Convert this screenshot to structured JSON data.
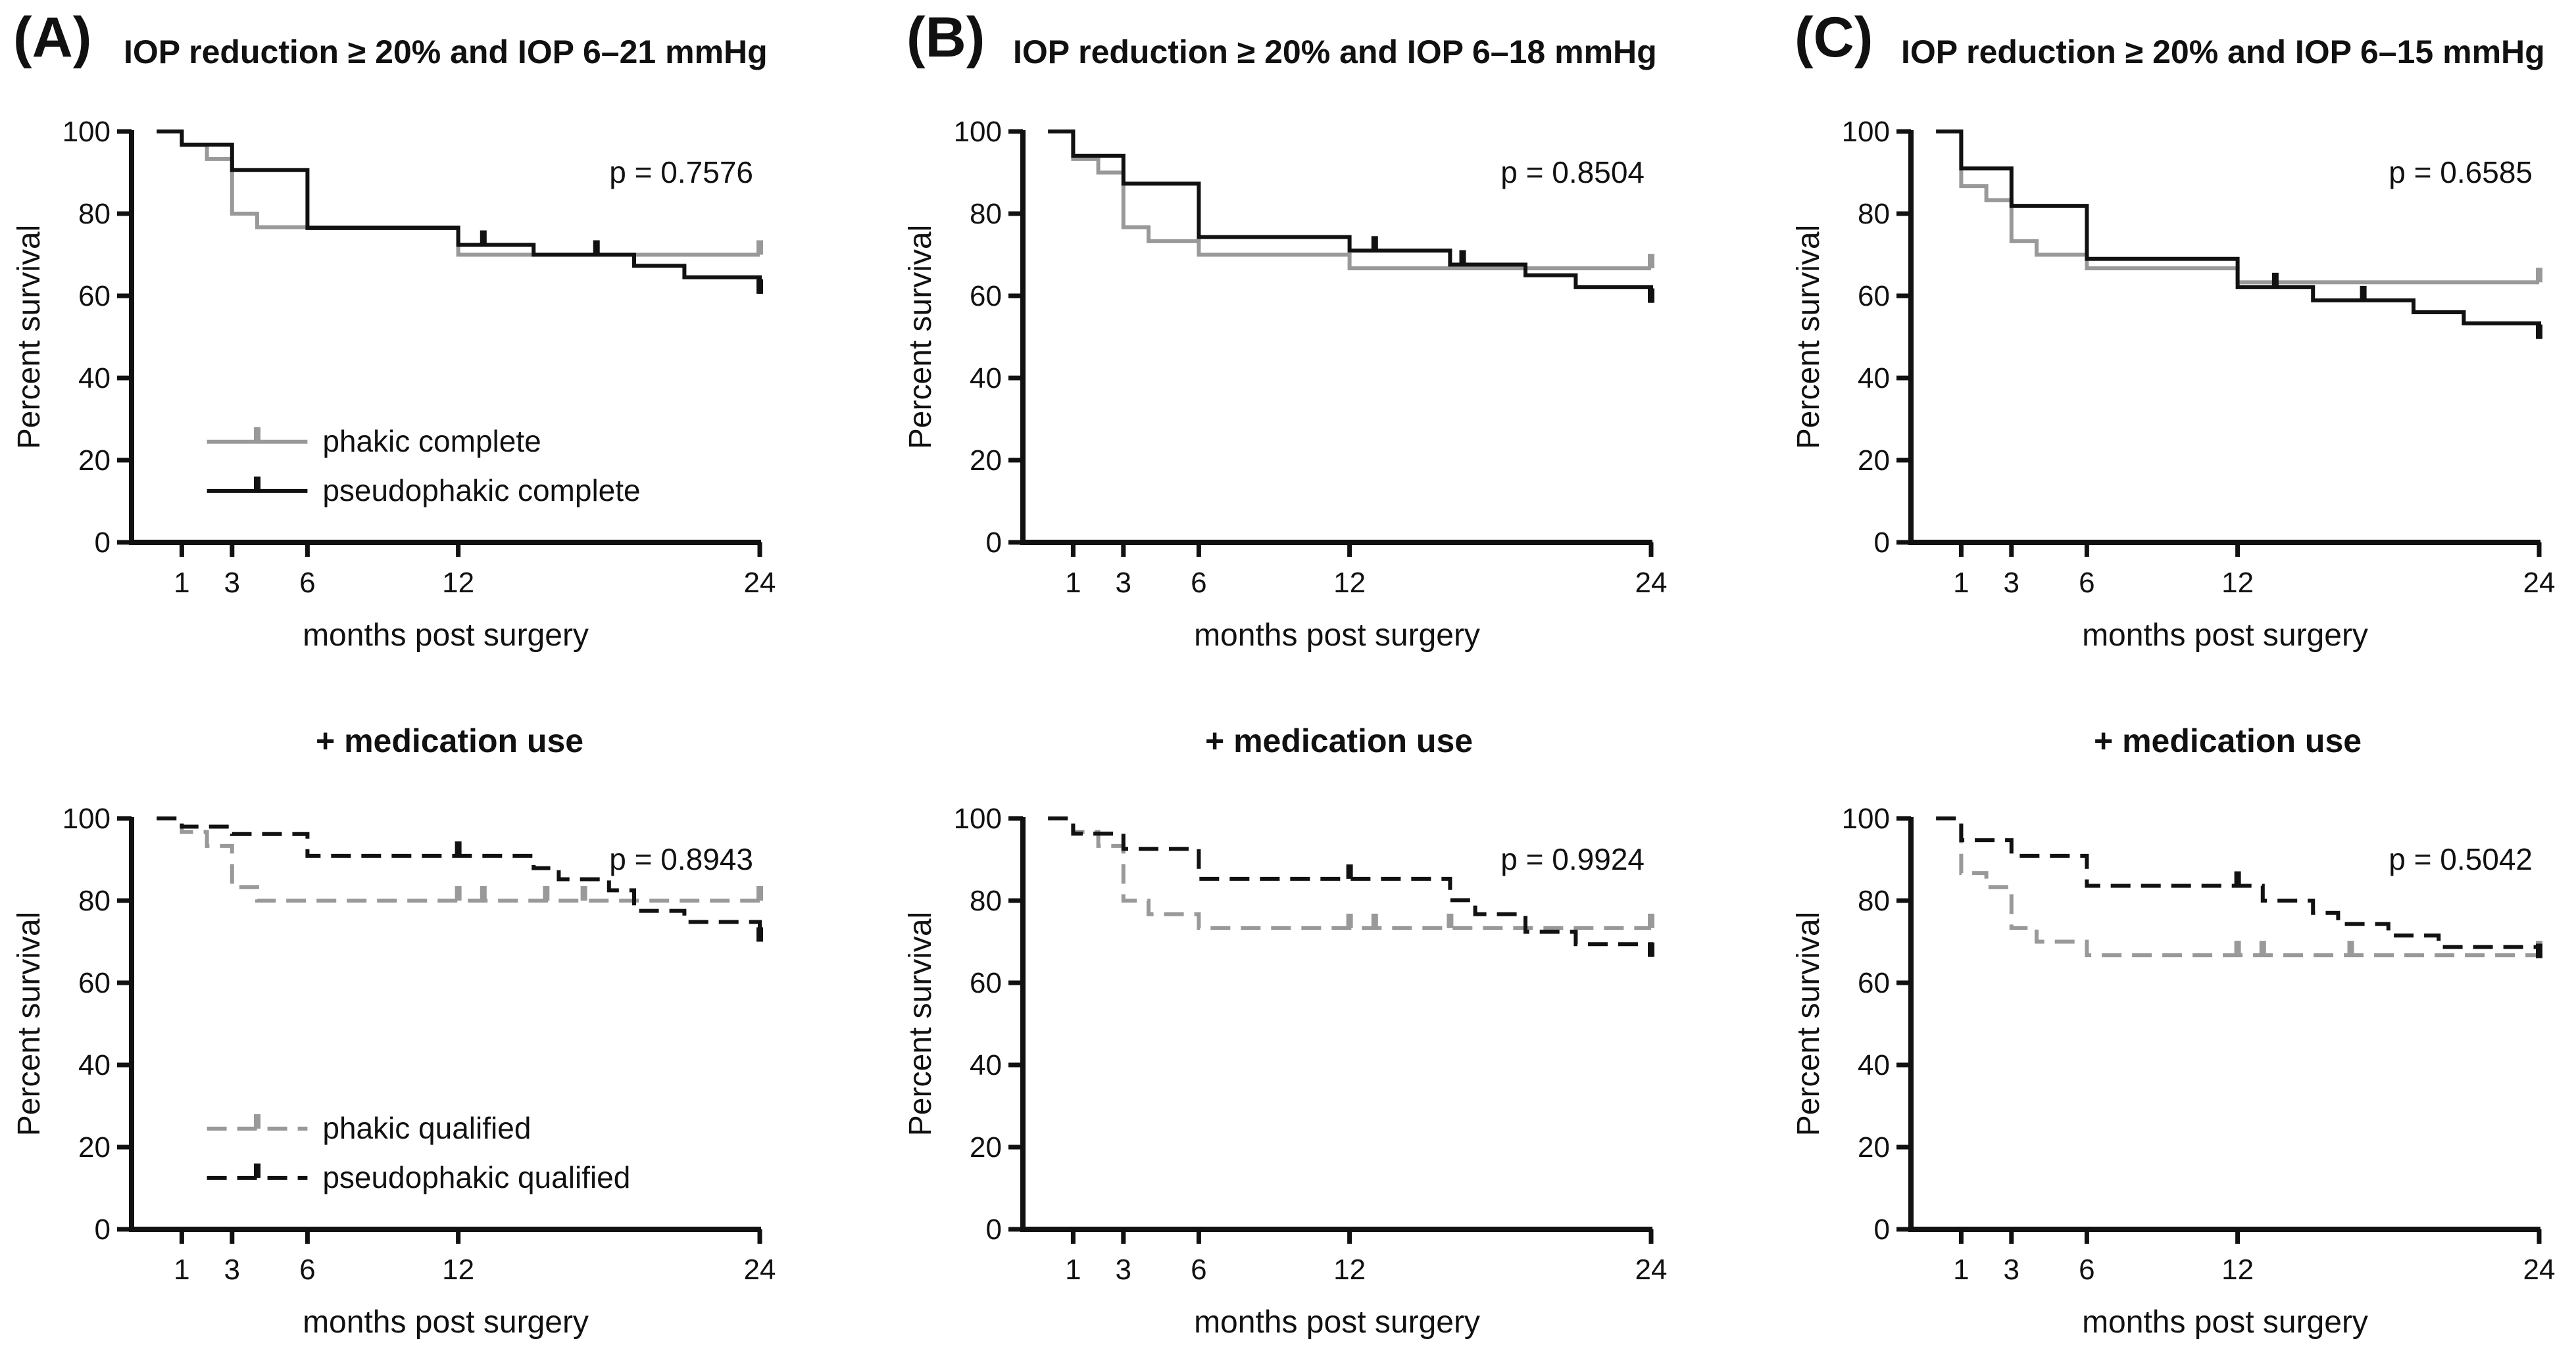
{
  "colors": {
    "phakic": "#999999",
    "pseudophakic": "#111111",
    "axis": "#111111"
  },
  "panels": [
    {
      "letter": "(A)",
      "title": "IOP reduction ≥ 20% and IOP 6–21 mmHg",
      "medication_title": "+ medication use"
    },
    {
      "letter": "(B)",
      "title": "IOP reduction ≥ 20% and IOP 6–18 mmHg",
      "medication_title": "+ medication use"
    },
    {
      "letter": "(C)",
      "title": "IOP reduction ≥ 20% and IOP 6–15 mmHg",
      "medication_title": "+ medication use"
    }
  ],
  "chart_data": [
    {
      "id": "A-complete",
      "type": "line",
      "title": "IOP reduction ≥ 20% and IOP 6–21 mmHg",
      "xlabel": "months post surgery",
      "ylabel": "Percent survival",
      "xticks": [
        1,
        3,
        6,
        12,
        24
      ],
      "yticks": [
        0,
        20,
        40,
        60,
        80,
        100
      ],
      "xlim": [
        -1,
        24
      ],
      "ylim": [
        0,
        100
      ],
      "p_value": "p = 0.7576",
      "legend": [
        "phakic complete",
        "pseudophakic complete"
      ],
      "series": [
        {
          "name": "phakic complete",
          "style": "solid",
          "color": "#999999",
          "x": [
            0,
            1,
            2,
            3,
            4,
            12,
            24
          ],
          "y": [
            100,
            96.7,
            93.3,
            80,
            76.7,
            70,
            70
          ],
          "censored_x": [
            24
          ]
        },
        {
          "name": "pseudophakic complete",
          "style": "solid",
          "color": "#111111",
          "x": [
            0,
            1,
            3,
            6,
            12,
            15,
            19,
            21,
            24
          ],
          "y": [
            100,
            96.8,
            90.6,
            76.5,
            72.4,
            70,
            67.3,
            64.5,
            60.5
          ],
          "censored_x": [
            13,
            17.5,
            24
          ]
        }
      ]
    },
    {
      "id": "B-complete",
      "type": "line",
      "title": "IOP reduction ≥ 20% and IOP 6–18 mmHg",
      "xlabel": "months post surgery",
      "ylabel": "Percent survival",
      "xticks": [
        1,
        3,
        6,
        12,
        24
      ],
      "yticks": [
        0,
        20,
        40,
        60,
        80,
        100
      ],
      "xlim": [
        -1,
        24
      ],
      "ylim": [
        0,
        100
      ],
      "p_value": "p = 0.8504",
      "legend": [],
      "series": [
        {
          "name": "phakic complete",
          "style": "solid",
          "color": "#999999",
          "x": [
            0,
            1,
            2,
            3,
            4,
            6,
            12,
            24
          ],
          "y": [
            100,
            93.3,
            90,
            76.7,
            73.3,
            70,
            66.7,
            66.7
          ],
          "censored_x": [
            24
          ]
        },
        {
          "name": "pseudophakic complete",
          "style": "solid",
          "color": "#111111",
          "x": [
            0,
            1,
            3,
            6,
            12,
            16,
            19,
            21,
            24
          ],
          "y": [
            100,
            94.1,
            87.3,
            74.3,
            71,
            67.6,
            65,
            62.1,
            58.3
          ],
          "censored_x": [
            13,
            16.5,
            24
          ]
        }
      ]
    },
    {
      "id": "C-complete",
      "type": "line",
      "title": "IOP reduction ≥ 20% and IOP 6–15 mmHg",
      "xlabel": "months post surgery",
      "ylabel": "Percent survival",
      "xticks": [
        1,
        3,
        6,
        12,
        24
      ],
      "yticks": [
        0,
        20,
        40,
        60,
        80,
        100
      ],
      "xlim": [
        -1,
        24
      ],
      "ylim": [
        0,
        100
      ],
      "p_value": "p = 0.6585",
      "legend": [],
      "series": [
        {
          "name": "phakic complete",
          "style": "solid",
          "color": "#999999",
          "x": [
            0,
            1,
            2,
            3,
            4,
            6,
            12,
            24
          ],
          "y": [
            100,
            86.7,
            83.3,
            73.3,
            70,
            66.7,
            63.3,
            63.3
          ],
          "censored_x": [
            24
          ]
        },
        {
          "name": "pseudophakic complete",
          "style": "solid",
          "color": "#111111",
          "x": [
            0,
            1,
            3,
            6,
            12,
            15,
            19,
            21,
            24
          ],
          "y": [
            100,
            91,
            81.9,
            69,
            62.1,
            58.9,
            56,
            53.3,
            49.5
          ],
          "censored_x": [
            13.5,
            17,
            24
          ]
        }
      ]
    },
    {
      "id": "A-qualified",
      "type": "line",
      "title": "+ medication use",
      "xlabel": "months post surgery",
      "ylabel": "Percent survival",
      "xticks": [
        1,
        3,
        6,
        12,
        24
      ],
      "yticks": [
        0,
        20,
        40,
        60,
        80,
        100
      ],
      "xlim": [
        -1,
        24
      ],
      "ylim": [
        0,
        100
      ],
      "p_value": "p = 0.8943",
      "legend": [
        "phakic qualified",
        "pseudophakic qualified"
      ],
      "series": [
        {
          "name": "phakic qualified",
          "style": "dashed",
          "color": "#999999",
          "x": [
            0,
            1,
            2,
            3,
            4,
            12,
            24
          ],
          "y": [
            100,
            96.7,
            93.3,
            83.3,
            80,
            80,
            80
          ],
          "censored_x": [
            12,
            13,
            15.5,
            17,
            24
          ]
        },
        {
          "name": "pseudophakic qualified",
          "style": "dashed",
          "color": "#111111",
          "x": [
            0,
            1,
            3,
            6,
            12,
            15,
            16,
            18,
            19,
            21,
            24
          ],
          "y": [
            100,
            98,
            96.2,
            90.9,
            90.9,
            87.9,
            85.2,
            82.5,
            77.5,
            74.8,
            70
          ],
          "censored_x": [
            12,
            24
          ]
        }
      ]
    },
    {
      "id": "B-qualified",
      "type": "line",
      "title": "+ medication use",
      "xlabel": "months post surgery",
      "ylabel": "Percent survival",
      "xticks": [
        1,
        3,
        6,
        12,
        24
      ],
      "yticks": [
        0,
        20,
        40,
        60,
        80,
        100
      ],
      "xlim": [
        -1,
        24
      ],
      "ylim": [
        0,
        100
      ],
      "p_value": "p = 0.9924",
      "legend": [],
      "series": [
        {
          "name": "phakic qualified",
          "style": "dashed",
          "color": "#999999",
          "x": [
            0,
            1,
            2,
            3,
            4,
            6,
            24
          ],
          "y": [
            100,
            96.7,
            93.3,
            80,
            76.7,
            73.3,
            73.3
          ],
          "censored_x": [
            12,
            13,
            16,
            24
          ]
        },
        {
          "name": "pseudophakic qualified",
          "style": "dashed",
          "color": "#111111",
          "x": [
            0,
            1,
            3,
            6,
            12,
            16,
            17,
            19,
            21,
            24
          ],
          "y": [
            100,
            96.3,
            92.6,
            85.3,
            85.3,
            80.1,
            76.7,
            72.4,
            69.4,
            66.3
          ],
          "censored_x": [
            12,
            24
          ]
        }
      ]
    },
    {
      "id": "C-qualified",
      "type": "line",
      "title": "+ medication use",
      "xlabel": "months post surgery",
      "ylabel": "Percent survival",
      "xticks": [
        1,
        3,
        6,
        12,
        24
      ],
      "yticks": [
        0,
        20,
        40,
        60,
        80,
        100
      ],
      "xlim": [
        -1,
        24
      ],
      "ylim": [
        0,
        100
      ],
      "p_value": "p = 0.5042",
      "legend": [],
      "series": [
        {
          "name": "phakic qualified",
          "style": "dashed",
          "color": "#999999",
          "x": [
            0,
            1,
            2,
            3,
            4,
            6,
            24
          ],
          "y": [
            100,
            86.7,
            83.3,
            73.3,
            70,
            66.7,
            66.7
          ],
          "censored_x": [
            12,
            13,
            16.5,
            24
          ]
        },
        {
          "name": "pseudophakic qualified",
          "style": "dashed",
          "color": "#111111",
          "x": [
            0,
            1,
            3,
            6,
            12,
            13,
            15,
            16,
            18,
            20,
            24
          ],
          "y": [
            100,
            94.7,
            90.9,
            83.6,
            83.6,
            80,
            77,
            74.3,
            71.5,
            68.7,
            66
          ],
          "censored_x": [
            12,
            24
          ]
        }
      ]
    }
  ]
}
